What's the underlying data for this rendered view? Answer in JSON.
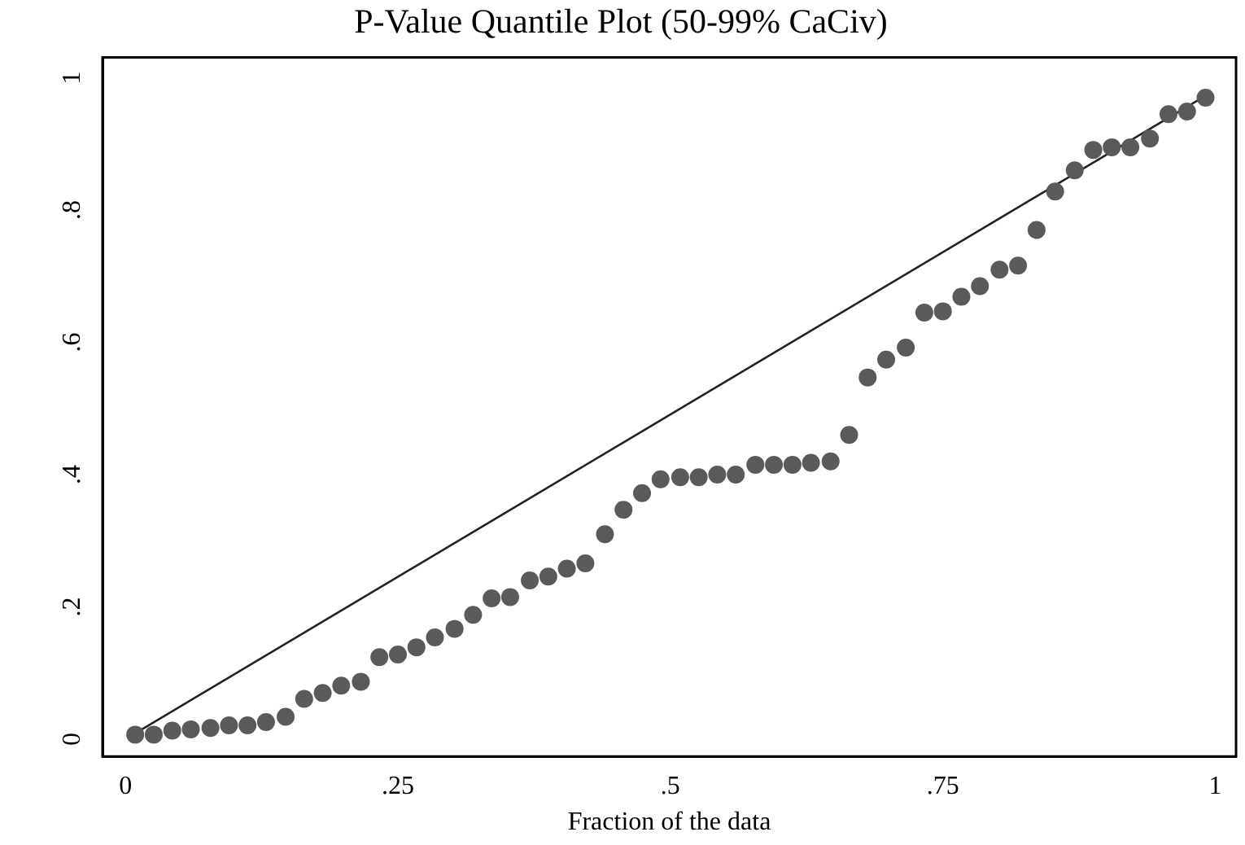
{
  "chart_data": {
    "type": "scatter",
    "title": "P-Value Quantile Plot (50-99% CaCiv)",
    "xlabel": "Fraction of the data",
    "xlim": [
      -0.021,
      1.019
    ],
    "ylim": [
      -0.026,
      1.031
    ],
    "xticks": [
      0,
      {
        "value": 0.25,
        "label": ".25"
      },
      {
        "value": 0.5,
        "label": ".5"
      },
      {
        "value": 0.75,
        "label": ".75"
      },
      1
    ],
    "yticks": [
      0,
      {
        "value": 0.2,
        "label": ".2"
      },
      {
        "value": 0.4,
        "label": ".4"
      },
      {
        "value": 0.6,
        "label": ".6"
      },
      {
        "value": 0.8,
        "label": ".8"
      },
      1
    ],
    "grid": false,
    "legend": false,
    "marker": "circle",
    "series": [
      {
        "color": "#5a5a5a",
        "x": [
          0.009,
          0.026,
          0.043,
          0.06,
          0.078,
          0.095,
          0.112,
          0.129,
          0.147,
          0.164,
          0.181,
          0.198,
          0.216,
          0.233,
          0.25,
          0.267,
          0.284,
          0.302,
          0.319,
          0.336,
          0.353,
          0.371,
          0.388,
          0.405,
          0.422,
          0.44,
          0.457,
          0.474,
          0.491,
          0.509,
          0.526,
          0.543,
          0.56,
          0.578,
          0.595,
          0.612,
          0.629,
          0.647,
          0.664,
          0.681,
          0.698,
          0.716,
          0.733,
          0.75,
          0.767,
          0.784,
          0.802,
          0.819,
          0.836,
          0.853,
          0.871,
          0.888,
          0.905,
          0.922,
          0.94,
          0.957,
          0.974,
          0.991
        ],
        "values": [
          0.007,
          0.007,
          0.013,
          0.015,
          0.017,
          0.021,
          0.021,
          0.026,
          0.034,
          0.061,
          0.07,
          0.081,
          0.087,
          0.124,
          0.128,
          0.139,
          0.154,
          0.167,
          0.188,
          0.213,
          0.215,
          0.24,
          0.246,
          0.258,
          0.266,
          0.31,
          0.347,
          0.372,
          0.393,
          0.396,
          0.396,
          0.4,
          0.4,
          0.415,
          0.415,
          0.415,
          0.418,
          0.42,
          0.46,
          0.547,
          0.574,
          0.592,
          0.645,
          0.647,
          0.669,
          0.685,
          0.71,
          0.716,
          0.77,
          0.828,
          0.86,
          0.891,
          0.895,
          0.895,
          0.908,
          0.945,
          0.949,
          0.97
        ]
      },
      {
        "type": "line",
        "color": "#222222",
        "marker": "none",
        "x": [
          0.009,
          0.991
        ],
        "values": [
          0.009,
          0.973
        ]
      }
    ]
  }
}
